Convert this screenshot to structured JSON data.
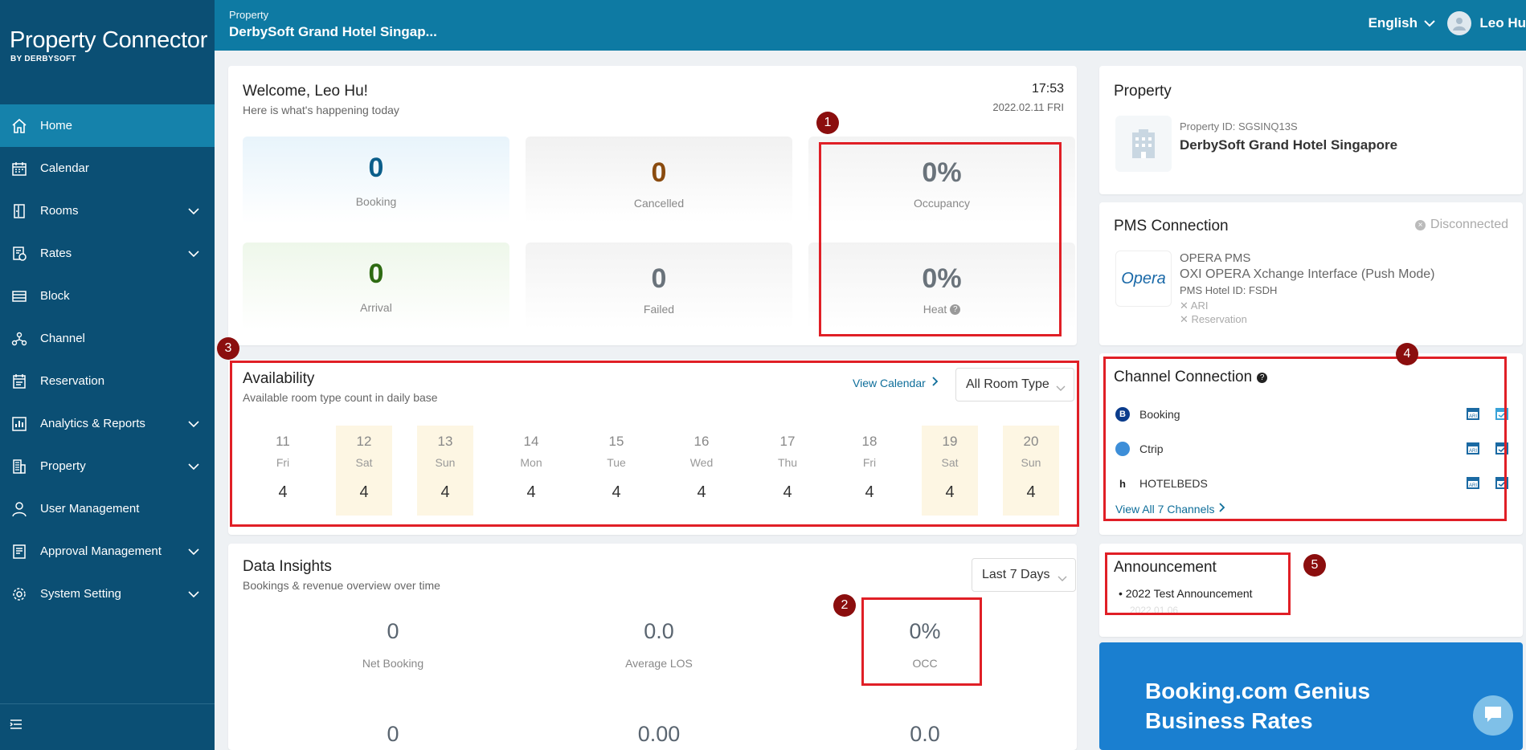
{
  "app": {
    "logo_main": "Property Connector",
    "logo_sub": "BY DERBYSOFT"
  },
  "nav": {
    "items": [
      {
        "label": "Home",
        "icon": "home-icon"
      },
      {
        "label": "Calendar",
        "icon": "calendar-icon"
      },
      {
        "label": "Rooms",
        "icon": "door-icon"
      },
      {
        "label": "Rates",
        "icon": "rates-icon"
      },
      {
        "label": "Block",
        "icon": "block-icon"
      },
      {
        "label": "Channel",
        "icon": "channel-icon"
      },
      {
        "label": "Reservation",
        "icon": "reservation-icon"
      },
      {
        "label": "Analytics & Reports",
        "icon": "analytics-icon"
      },
      {
        "label": "Property",
        "icon": "building-icon"
      },
      {
        "label": "User Management",
        "icon": "user-icon"
      },
      {
        "label": "Approval Management",
        "icon": "approval-icon"
      },
      {
        "label": "System Setting",
        "icon": "gear-icon"
      }
    ]
  },
  "header": {
    "property_label": "Property",
    "property_name": "DerbySoft Grand Hotel Singap...",
    "language": "English",
    "user_name": "Leo Hu"
  },
  "welcome": {
    "title": "Welcome, Leo Hu!",
    "subtitle": "Here is what's happening today",
    "time": "17:53",
    "date": "2022.02.11 FRI",
    "stats": {
      "booking": {
        "value": "0",
        "label": "Booking"
      },
      "cancelled": {
        "value": "0",
        "label": "Cancelled"
      },
      "occupancy": {
        "value": "0%",
        "label": "Occupancy"
      },
      "arrival": {
        "value": "0",
        "label": "Arrival"
      },
      "failed": {
        "value": "0",
        "label": "Failed"
      },
      "heat": {
        "value": "0%",
        "label": "Heat"
      }
    }
  },
  "availability": {
    "title": "Availability",
    "subtitle": "Available room type count in daily base",
    "view_calendar": "View Calendar",
    "room_type": "All Room Type",
    "days": [
      {
        "d": "11",
        "w": "Fri",
        "c": "4"
      },
      {
        "d": "12",
        "w": "Sat",
        "c": "4"
      },
      {
        "d": "13",
        "w": "Sun",
        "c": "4"
      },
      {
        "d": "14",
        "w": "Mon",
        "c": "4"
      },
      {
        "d": "15",
        "w": "Tue",
        "c": "4"
      },
      {
        "d": "16",
        "w": "Wed",
        "c": "4"
      },
      {
        "d": "17",
        "w": "Thu",
        "c": "4"
      },
      {
        "d": "18",
        "w": "Fri",
        "c": "4"
      },
      {
        "d": "19",
        "w": "Sat",
        "c": "4"
      },
      {
        "d": "20",
        "w": "Sun",
        "c": "4"
      }
    ]
  },
  "insights": {
    "title": "Data Insights",
    "subtitle": "Bookings & revenue overview over time",
    "range": "Last 7 Days",
    "net_booking": {
      "value": "0",
      "label": "Net Booking"
    },
    "average_los": {
      "value": "0.0",
      "label": "Average LOS"
    },
    "occ": {
      "value": "0%",
      "label": "OCC"
    },
    "row2": [
      "0",
      "0.00",
      "0.0"
    ]
  },
  "property_card": {
    "title": "Property",
    "id_line": "Property ID: SGSINQ13S",
    "name": "DerbySoft Grand Hotel Singapore"
  },
  "pms": {
    "title": "PMS Connection",
    "status": "Disconnected",
    "logo_text": "Opera",
    "name": "OPERA PMS",
    "interface": "OXI OPERA Xchange Interface (Push Mode)",
    "hotel_id": "PMS Hotel ID: FSDH",
    "ari": "ARI",
    "reservation": "Reservation"
  },
  "channels": {
    "title": "Channel Connection",
    "items": [
      {
        "name": "Booking",
        "badge": "B"
      },
      {
        "name": "Ctrip",
        "badge": ""
      },
      {
        "name": "HOTELBEDS",
        "badge": "h"
      }
    ],
    "view_all": "View All 7 Channels",
    "ari_label": "ARI"
  },
  "announcement": {
    "title": "Announcement",
    "item": "2022 Test Announcement",
    "date": "2022.01.06"
  },
  "promo": {
    "text": "Booking.com Genius Business Rates"
  },
  "badges": [
    "1",
    "2",
    "3",
    "4",
    "5"
  ],
  "colors": {
    "sidebar": "#0b4f74",
    "header": "#0e7aa3",
    "active": "#1582ab",
    "booking_num": "#0b5e8a",
    "cancelled_num": "#8a4b0f",
    "arrival_num": "#2e6b12",
    "annotation_red": "#e01f26",
    "badge": "#8b0e0e",
    "promo_bg": "#1a7fd0"
  }
}
